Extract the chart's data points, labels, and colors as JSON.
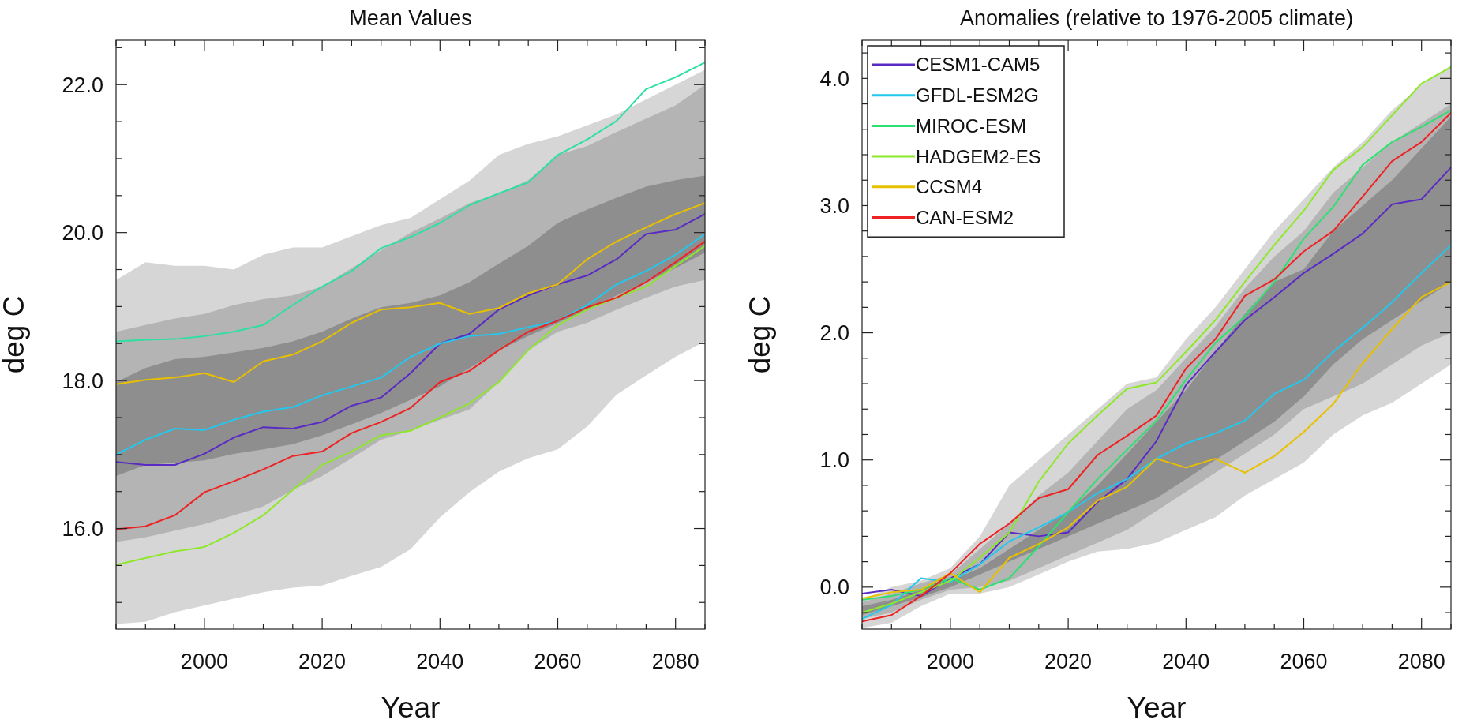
{
  "chart_data": [
    {
      "type": "line",
      "title": "Mean Values",
      "xlabel": "Year",
      "ylabel": "deg C",
      "grid": false,
      "legend": false,
      "x": [
        1985,
        1990,
        1995,
        2000,
        2005,
        2010,
        2015,
        2020,
        2025,
        2030,
        2035,
        2040,
        2045,
        2050,
        2055,
        2060,
        2065,
        2070,
        2075,
        2080,
        2085
      ],
      "xlim": [
        1985,
        2085
      ],
      "xticks": [
        {
          "value": 1985,
          "label": null
        },
        {
          "value": 1990,
          "label": null
        },
        {
          "value": 1995,
          "label": null
        },
        2000,
        {
          "value": 2005,
          "label": null
        },
        {
          "value": 2010,
          "label": null
        },
        {
          "value": 2015,
          "label": null
        },
        2020,
        {
          "value": 2025,
          "label": null
        },
        {
          "value": 2030,
          "label": null
        },
        {
          "value": 2035,
          "label": null
        },
        2040,
        {
          "value": 2045,
          "label": null
        },
        {
          "value": 2050,
          "label": null
        },
        {
          "value": 2055,
          "label": null
        },
        2060,
        {
          "value": 2065,
          "label": null
        },
        {
          "value": 2070,
          "label": null
        },
        {
          "value": 2075,
          "label": null
        },
        2080,
        {
          "value": 2085,
          "label": null
        }
      ],
      "ylim": [
        14.64,
        22.6
      ],
      "yticks": [
        {
          "value": 15,
          "label": null
        },
        {
          "value": 15.5,
          "label": null
        },
        {
          "value": 16,
          "label": "16.0"
        },
        {
          "value": 16.5,
          "label": null
        },
        {
          "value": 17,
          "label": null
        },
        {
          "value": 17.5,
          "label": null
        },
        {
          "value": 18,
          "label": "18.0"
        },
        {
          "value": 18.5,
          "label": null
        },
        {
          "value": 19,
          "label": null
        },
        {
          "value": 19.5,
          "label": null
        },
        {
          "value": 20,
          "label": "20.0"
        },
        {
          "value": 20.5,
          "label": null
        },
        {
          "value": 21,
          "label": null
        },
        {
          "value": 21.5,
          "label": null
        },
        {
          "value": 22,
          "label": "22.0"
        },
        {
          "value": 22.5,
          "label": null
        }
      ],
      "series": [
        {
          "color": "#d6d6d6",
          "values": [
            null,
            null,
            null,
            null,
            null,
            null,
            null,
            null,
            null,
            null,
            null,
            null,
            null,
            null,
            null,
            null,
            null,
            null,
            null,
            null,
            null
          ],
          "upper": [
            19.36,
            19.6,
            19.55,
            19.55,
            19.5,
            19.7,
            19.8,
            19.8,
            19.95,
            20.1,
            20.2,
            20.45,
            20.7,
            21.05,
            21.2,
            21.3,
            21.45,
            21.6,
            21.8,
            22.0,
            22.2
          ],
          "lower": [
            14.71,
            14.74,
            14.87,
            14.96,
            15.05,
            15.14,
            15.2,
            15.23,
            15.36,
            15.48,
            15.72,
            16.15,
            16.49,
            16.77,
            16.95,
            17.07,
            17.38,
            17.81,
            18.07,
            18.32,
            18.53
          ]
        },
        {
          "color": "#b4b4b4",
          "values": [
            null,
            null,
            null,
            null,
            null,
            null,
            null,
            null,
            null,
            null,
            null,
            null,
            null,
            null,
            null,
            null,
            null,
            null,
            null,
            null,
            null
          ],
          "upper": [
            18.66,
            18.75,
            18.84,
            18.9,
            19.02,
            19.1,
            19.15,
            19.27,
            19.52,
            19.76,
            20.0,
            20.19,
            20.4,
            20.53,
            20.71,
            21.05,
            21.17,
            21.36,
            21.54,
            21.72,
            22.0
          ],
          "lower": [
            15.82,
            15.88,
            15.97,
            16.06,
            16.18,
            16.3,
            16.52,
            16.71,
            16.95,
            17.2,
            17.32,
            17.47,
            17.61,
            17.98,
            18.41,
            18.66,
            18.78,
            18.96,
            19.12,
            19.27,
            19.36
          ]
        },
        {
          "color": "#8e8e8e",
          "values": [
            null,
            null,
            null,
            null,
            null,
            null,
            null,
            null,
            null,
            null,
            null,
            null,
            null,
            null,
            null,
            null,
            null,
            null,
            null,
            null,
            null
          ],
          "upper": [
            17.98,
            18.17,
            18.29,
            18.32,
            18.38,
            18.44,
            18.53,
            18.66,
            18.84,
            18.99,
            19.05,
            19.15,
            19.33,
            19.58,
            19.82,
            20.13,
            20.31,
            20.47,
            20.62,
            20.71,
            20.77
          ],
          "lower": [
            16.71,
            16.86,
            16.89,
            16.92,
            17.01,
            17.07,
            17.14,
            17.26,
            17.41,
            17.56,
            17.74,
            17.92,
            18.17,
            18.41,
            18.6,
            18.78,
            18.96,
            19.15,
            19.33,
            19.52,
            19.73
          ]
        },
        {
          "color": "#5a2bc4",
          "values": [
            16.9,
            16.86,
            16.86,
            17.01,
            17.23,
            17.37,
            17.35,
            17.44,
            17.66,
            17.77,
            18.1,
            18.5,
            18.63,
            18.96,
            19.15,
            19.3,
            19.42,
            19.64,
            19.98,
            20.04,
            20.25
          ]
        },
        {
          "color": "#22c8ee",
          "values": [
            17.0,
            17.2,
            17.35,
            17.33,
            17.47,
            17.58,
            17.64,
            17.8,
            17.92,
            18.04,
            18.32,
            18.5,
            18.6,
            18.63,
            18.72,
            18.81,
            19.02,
            19.3,
            19.48,
            19.7,
            19.98
          ]
        },
        {
          "color": "#2ee0a0",
          "values": [
            18.53,
            18.55,
            18.56,
            18.6,
            18.66,
            18.75,
            19.02,
            19.27,
            19.48,
            19.79,
            19.94,
            20.13,
            20.37,
            20.53,
            20.68,
            21.05,
            21.26,
            21.51,
            21.94,
            22.1,
            22.3
          ]
        },
        {
          "color": "#8ee82a",
          "values": [
            15.51,
            15.6,
            15.69,
            15.75,
            15.94,
            16.18,
            16.52,
            16.86,
            17.04,
            17.26,
            17.32,
            17.5,
            17.69,
            17.98,
            18.41,
            18.75,
            18.96,
            19.12,
            19.27,
            19.55,
            19.82
          ]
        },
        {
          "color": "#e8c000",
          "values": [
            17.95,
            18.01,
            18.04,
            18.1,
            17.98,
            18.26,
            18.35,
            18.53,
            18.78,
            18.96,
            18.99,
            19.05,
            18.9,
            18.98,
            19.18,
            19.3,
            19.64,
            19.88,
            20.07,
            20.25,
            20.4
          ]
        },
        {
          "color": "#ee2222",
          "values": [
            15.99,
            16.03,
            16.18,
            16.49,
            16.64,
            16.8,
            16.98,
            17.04,
            17.29,
            17.44,
            17.63,
            17.98,
            18.13,
            18.41,
            18.66,
            18.81,
            18.99,
            19.12,
            19.33,
            19.6,
            19.88
          ]
        }
      ]
    },
    {
      "type": "line",
      "title": "Anomalies (relative to 1976-2005 climate)",
      "xlabel": "Year",
      "ylabel": "deg C",
      "grid": false,
      "legend": "top left",
      "x": [
        1985,
        1990,
        1995,
        2000,
        2005,
        2010,
        2015,
        2020,
        2025,
        2030,
        2035,
        2040,
        2045,
        2050,
        2055,
        2060,
        2065,
        2070,
        2075,
        2080,
        2085
      ],
      "xlim": [
        1985,
        2085
      ],
      "xticks": [
        {
          "value": 1985,
          "label": null
        },
        {
          "value": 1990,
          "label": null
        },
        {
          "value": 1995,
          "label": null
        },
        2000,
        {
          "value": 2005,
          "label": null
        },
        {
          "value": 2010,
          "label": null
        },
        {
          "value": 2015,
          "label": null
        },
        2020,
        {
          "value": 2025,
          "label": null
        },
        {
          "value": 2030,
          "label": null
        },
        {
          "value": 2035,
          "label": null
        },
        2040,
        {
          "value": 2045,
          "label": null
        },
        {
          "value": 2050,
          "label": null
        },
        {
          "value": 2055,
          "label": null
        },
        2060,
        {
          "value": 2065,
          "label": null
        },
        {
          "value": 2070,
          "label": null
        },
        {
          "value": 2075,
          "label": null
        },
        2080,
        {
          "value": 2085,
          "label": null
        }
      ],
      "ylim": [
        -0.33,
        4.3
      ],
      "yticks": [
        {
          "value": -0.2,
          "label": null
        },
        {
          "value": 0,
          "label": "0.0"
        },
        {
          "value": 0.2,
          "label": null
        },
        {
          "value": 0.4,
          "label": null
        },
        {
          "value": 0.6,
          "label": null
        },
        {
          "value": 0.8,
          "label": null
        },
        {
          "value": 1,
          "label": "1.0"
        },
        {
          "value": 1.2,
          "label": null
        },
        {
          "value": 1.4,
          "label": null
        },
        {
          "value": 1.6,
          "label": null
        },
        {
          "value": 1.8,
          "label": null
        },
        {
          "value": 2,
          "label": "2.0"
        },
        {
          "value": 2.2,
          "label": null
        },
        {
          "value": 2.4,
          "label": null
        },
        {
          "value": 2.6,
          "label": null
        },
        {
          "value": 2.8,
          "label": null
        },
        {
          "value": 3,
          "label": "3.0"
        },
        {
          "value": 3.2,
          "label": null
        },
        {
          "value": 3.4,
          "label": null
        },
        {
          "value": 3.6,
          "label": null
        },
        {
          "value": 3.8,
          "label": null
        },
        {
          "value": 4,
          "label": "4.0"
        },
        {
          "value": 4.2,
          "label": null
        }
      ],
      "series": [
        {
          "color": "#d6d6d6",
          "values": [
            null,
            null,
            null,
            null,
            null,
            null,
            null,
            null,
            null,
            null,
            null,
            null,
            null,
            null,
            null,
            null,
            null,
            null,
            null,
            null,
            null
          ],
          "upper": [
            -0.1,
            0.0,
            0.05,
            0.15,
            0.4,
            0.8,
            1.0,
            1.2,
            1.4,
            1.6,
            1.65,
            1.95,
            2.2,
            2.5,
            2.8,
            3.05,
            3.3,
            3.5,
            3.75,
            3.95,
            4.1
          ],
          "lower": [
            -0.32,
            -0.28,
            -0.15,
            -0.05,
            -0.05,
            0.0,
            0.1,
            0.2,
            0.28,
            0.3,
            0.35,
            0.45,
            0.55,
            0.72,
            0.85,
            0.98,
            1.2,
            1.35,
            1.45,
            1.6,
            1.75
          ]
        },
        {
          "color": "#b4b4b4",
          "values": [
            null,
            null,
            null,
            null,
            null,
            null,
            null,
            null,
            null,
            null,
            null,
            null,
            null,
            null,
            null,
            null,
            null,
            null,
            null,
            null,
            null
          ],
          "upper": [
            -0.12,
            -0.05,
            0.03,
            0.1,
            0.3,
            0.5,
            0.72,
            0.9,
            1.15,
            1.4,
            1.55,
            1.8,
            2.05,
            2.35,
            2.6,
            2.8,
            3.1,
            3.3,
            3.5,
            3.65,
            3.8
          ],
          "lower": [
            -0.25,
            -0.2,
            -0.1,
            -0.02,
            0.0,
            0.05,
            0.15,
            0.25,
            0.35,
            0.45,
            0.6,
            0.75,
            0.9,
            1.05,
            1.2,
            1.4,
            1.5,
            1.6,
            1.75,
            1.9,
            2.0
          ]
        },
        {
          "color": "#8e8e8e",
          "values": [
            null,
            null,
            null,
            null,
            null,
            null,
            null,
            null,
            null,
            null,
            null,
            null,
            null,
            null,
            null,
            null,
            null,
            null,
            null,
            null,
            null
          ],
          "upper": [
            -0.15,
            -0.1,
            -0.02,
            0.05,
            0.15,
            0.3,
            0.45,
            0.6,
            0.8,
            1.05,
            1.3,
            1.55,
            1.85,
            2.15,
            2.4,
            2.5,
            2.8,
            3.0,
            3.2,
            3.45,
            3.7
          ],
          "lower": [
            -0.22,
            -0.15,
            -0.08,
            0.0,
            0.1,
            0.2,
            0.3,
            0.4,
            0.5,
            0.6,
            0.7,
            0.85,
            1.0,
            1.15,
            1.3,
            1.5,
            1.75,
            1.95,
            2.1,
            2.25,
            2.4
          ]
        },
        {
          "name": "CESM1-CAM5",
          "color": "#5a2bc4",
          "values": [
            -0.05,
            -0.02,
            -0.07,
            0.07,
            0.18,
            0.43,
            0.4,
            0.43,
            0.67,
            0.85,
            1.15,
            1.59,
            1.85,
            2.1,
            2.28,
            2.47,
            2.62,
            2.78,
            3.01,
            3.05,
            3.3
          ]
        },
        {
          "name": "GFDL-ESM2G",
          "color": "#22c8ee",
          "values": [
            -0.25,
            -0.14,
            0.07,
            0.04,
            0.18,
            0.36,
            0.47,
            0.59,
            0.74,
            0.85,
            1.01,
            1.13,
            1.21,
            1.31,
            1.52,
            1.63,
            1.85,
            2.04,
            2.24,
            2.47,
            2.69
          ]
        },
        {
          "name": "MIROC-ESM",
          "color": "#2ee070",
          "values": [
            -0.1,
            -0.07,
            -0.02,
            0.07,
            -0.02,
            0.07,
            0.32,
            0.59,
            0.85,
            1.08,
            1.31,
            1.63,
            1.92,
            2.13,
            2.4,
            2.74,
            2.99,
            3.32,
            3.5,
            3.62,
            3.75
          ]
        },
        {
          "name": "HADGEM2-ES",
          "color": "#8ee82a",
          "values": [
            -0.2,
            -0.13,
            -0.04,
            0.05,
            0.23,
            0.43,
            0.83,
            1.13,
            1.35,
            1.56,
            1.61,
            1.85,
            2.1,
            2.4,
            2.69,
            2.96,
            3.28,
            3.46,
            3.71,
            3.96,
            4.09
          ]
        },
        {
          "name": "CCSM4",
          "color": "#e8c000",
          "values": [
            -0.09,
            -0.04,
            -0.02,
            0.11,
            -0.04,
            0.23,
            0.34,
            0.47,
            0.68,
            0.79,
            1.01,
            0.94,
            1.01,
            0.9,
            1.03,
            1.22,
            1.44,
            1.76,
            2.03,
            2.28,
            2.4
          ]
        },
        {
          "name": "CAN-ESM2",
          "color": "#ee2222",
          "values": [
            -0.27,
            -0.22,
            -0.07,
            0.11,
            0.34,
            0.5,
            0.7,
            0.77,
            1.04,
            1.19,
            1.35,
            1.72,
            1.95,
            2.29,
            2.42,
            2.64,
            2.8,
            3.07,
            3.35,
            3.5,
            3.73
          ]
        }
      ]
    }
  ]
}
